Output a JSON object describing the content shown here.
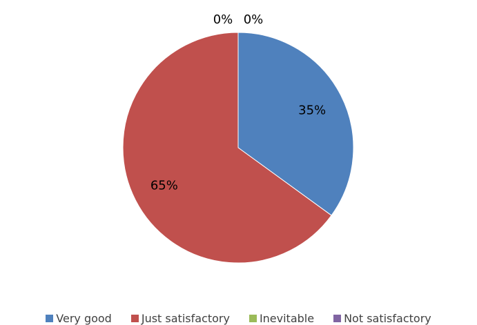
{
  "chart_data": {
    "type": "pie",
    "title": "",
    "slices": [
      {
        "label": "Very good",
        "value": 35,
        "display": "35%",
        "color": "#4F81BD"
      },
      {
        "label": "Just satisfactory",
        "value": 65,
        "display": "65%",
        "color": "#C0504D"
      },
      {
        "label": "Inevitable",
        "value": 0,
        "display": "0%",
        "color": "#9BBB59"
      },
      {
        "label": "Not satisfactory",
        "value": 0,
        "display": "0%",
        "color": "#8064A2"
      }
    ],
    "start_angle_deg": 0,
    "direction": "clockwise",
    "legend_position": "bottom",
    "data_labels": true
  }
}
